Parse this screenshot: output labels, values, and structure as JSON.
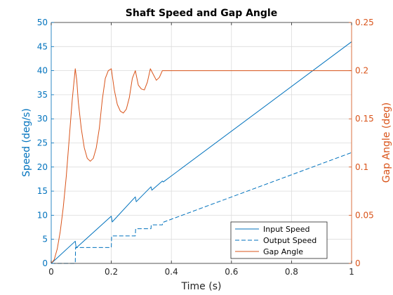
{
  "chart_data": {
    "type": "line",
    "title": "Shaft Speed and Gap Angle",
    "xlabel": "Time (s)",
    "ylabel_left": "Speed (deg/s)",
    "ylabel_right": "Gap Angle (deg)",
    "xlim": [
      0,
      1
    ],
    "ylim_left": [
      0,
      50
    ],
    "ylim_right": [
      0,
      0.25
    ],
    "xticks": [
      "0",
      "0.2",
      "0.4",
      "0.6",
      "0.8",
      "1"
    ],
    "yticks_left": [
      "0",
      "5",
      "10",
      "15",
      "20",
      "25",
      "30",
      "35",
      "40",
      "45",
      "50"
    ],
    "yticks_right": [
      "0",
      "0.05",
      "0.1",
      "0.15",
      "0.2",
      "0.25"
    ],
    "grid": true,
    "legend_position": "bottom-right",
    "colors": {
      "left_axis": "#0072BD",
      "right_axis": "#D95319",
      "frame": "#262626"
    },
    "series": [
      {
        "name": "Input Speed",
        "axis": "left",
        "style": "solid",
        "color": "#0072BD",
        "x": [
          0,
          0.08,
          0.083,
          0.2,
          0.203,
          0.28,
          0.283,
          0.332,
          0.335,
          0.37,
          0.373,
          1.0
        ],
        "y": [
          0,
          4.6,
          3.2,
          9.8,
          8.6,
          13.8,
          12.8,
          15.9,
          15.2,
          17.1,
          16.9,
          46.0
        ]
      },
      {
        "name": "Output Speed",
        "axis": "left",
        "style": "dashed",
        "color": "#0072BD",
        "x": [
          0,
          0.08,
          0.081,
          0.2,
          0.201,
          0.28,
          0.281,
          0.332,
          0.333,
          0.37,
          0.371,
          1.0
        ],
        "y": [
          0,
          0,
          3.3,
          3.3,
          5.7,
          5.7,
          7.2,
          7.2,
          8.0,
          8.0,
          8.5,
          23.0
        ]
      },
      {
        "name": "Gap Angle",
        "axis": "right",
        "style": "solid",
        "color": "#D95319",
        "x": [
          0,
          0.01,
          0.02,
          0.03,
          0.04,
          0.05,
          0.06,
          0.07,
          0.08,
          0.085,
          0.09,
          0.1,
          0.11,
          0.12,
          0.13,
          0.14,
          0.15,
          0.16,
          0.17,
          0.18,
          0.19,
          0.2,
          0.21,
          0.22,
          0.23,
          0.24,
          0.25,
          0.26,
          0.27,
          0.28,
          0.29,
          0.3,
          0.31,
          0.32,
          0.33,
          0.34,
          0.35,
          0.36,
          0.37,
          0.38,
          0.5,
          0.7,
          1.0
        ],
        "y": [
          0,
          0.004,
          0.015,
          0.033,
          0.058,
          0.09,
          0.13,
          0.17,
          0.202,
          0.19,
          0.168,
          0.14,
          0.12,
          0.109,
          0.106,
          0.109,
          0.12,
          0.14,
          0.17,
          0.192,
          0.2,
          0.202,
          0.18,
          0.165,
          0.158,
          0.156,
          0.16,
          0.172,
          0.192,
          0.2,
          0.185,
          0.181,
          0.18,
          0.188,
          0.202,
          0.196,
          0.19,
          0.193,
          0.2,
          0.2,
          0.2,
          0.2,
          0.2
        ]
      }
    ]
  }
}
